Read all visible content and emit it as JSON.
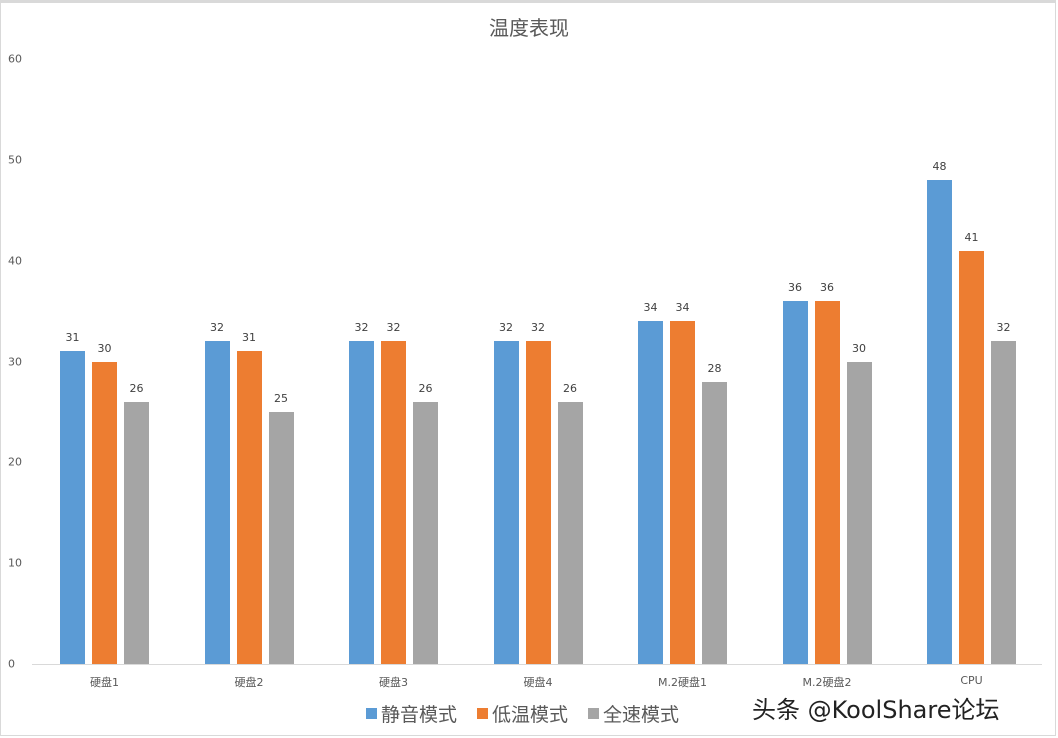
{
  "chart_data": {
    "type": "bar",
    "title": "温度表现",
    "xlabel": "",
    "ylabel": "",
    "ylim": [
      0,
      60
    ],
    "yticks": [
      0,
      10,
      20,
      30,
      40,
      50,
      60
    ],
    "grid": false,
    "legend_position": "bottom",
    "categories": [
      "硬盘1",
      "硬盘2",
      "硬盘3",
      "硬盘4",
      "M.2硬盘1",
      "M.2硬盘2",
      "CPU"
    ],
    "series": [
      {
        "name": "静音模式",
        "color": "#5b9bd5",
        "values": [
          31,
          32,
          32,
          32,
          34,
          36,
          48
        ]
      },
      {
        "name": "低温模式",
        "color": "#ed7d31",
        "values": [
          30,
          31,
          32,
          32,
          34,
          36,
          41
        ]
      },
      {
        "name": "全速模式",
        "color": "#a5a5a5",
        "values": [
          26,
          25,
          26,
          26,
          28,
          30,
          32
        ]
      }
    ]
  },
  "watermark": "头条 @KoolShare论坛"
}
